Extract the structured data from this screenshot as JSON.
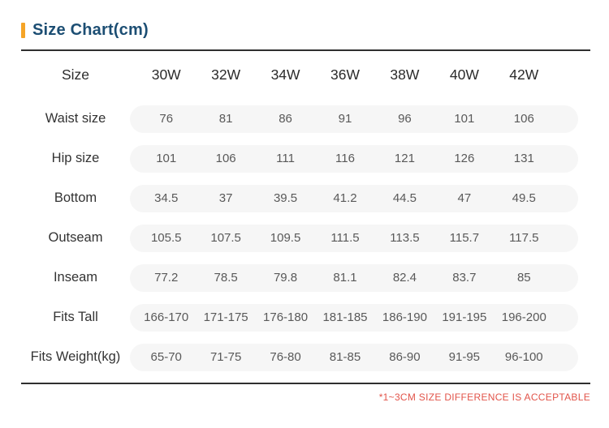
{
  "header": {
    "title": "Size Chart(cm)"
  },
  "table": {
    "header_label": "Size",
    "size_columns": [
      "30W",
      "32W",
      "34W",
      "36W",
      "38W",
      "40W",
      "42W"
    ],
    "rows": [
      {
        "label": "Waist size",
        "values": [
          "76",
          "81",
          "86",
          "91",
          "96",
          "101",
          "106"
        ]
      },
      {
        "label": "Hip size",
        "values": [
          "101",
          "106",
          "111",
          "116",
          "121",
          "126",
          "131"
        ]
      },
      {
        "label": "Bottom",
        "values": [
          "34.5",
          "37",
          "39.5",
          "41.2",
          "44.5",
          "47",
          "49.5"
        ]
      },
      {
        "label": "Outseam",
        "values": [
          "105.5",
          "107.5",
          "109.5",
          "111.5",
          "113.5",
          "115.7",
          "117.5"
        ]
      },
      {
        "label": "Inseam",
        "values": [
          "77.2",
          "78.5",
          "79.8",
          "81.1",
          "82.4",
          "83.7",
          "85"
        ]
      },
      {
        "label": "Fits Tall",
        "values": [
          "166-170",
          "171-175",
          "176-180",
          "181-185",
          "186-190",
          "191-195",
          "196-200"
        ]
      },
      {
        "label": "Fits Weight(kg)",
        "values": [
          "65-70",
          "71-75",
          "76-80",
          "81-85",
          "86-90",
          "91-95",
          "96-100"
        ]
      }
    ]
  },
  "footnote": {
    "text": "*1~3CM SIZE DIFFERENCE IS ACCEPTABLE"
  },
  "colors": {
    "title": "#1C4E73",
    "accent_bar": "#F5A427",
    "rule": "#2F2F2F",
    "row_pill_background": "#F6F6F6",
    "value_text": "#595959",
    "label_text": "#333333",
    "footnote_text": "#E2544A"
  },
  "chart_data": {
    "type": "table",
    "title": "Size Chart(cm)",
    "columns": [
      "Size",
      "30W",
      "32W",
      "34W",
      "36W",
      "38W",
      "40W",
      "42W"
    ],
    "rows": [
      [
        "Waist size",
        76,
        81,
        86,
        91,
        96,
        101,
        106
      ],
      [
        "Hip size",
        101,
        106,
        111,
        116,
        121,
        126,
        131
      ],
      [
        "Bottom",
        34.5,
        37,
        39.5,
        41.2,
        44.5,
        47,
        49.5
      ],
      [
        "Outseam",
        105.5,
        107.5,
        109.5,
        111.5,
        113.5,
        115.7,
        117.5
      ],
      [
        "Inseam",
        77.2,
        78.5,
        79.8,
        81.1,
        82.4,
        83.7,
        85
      ],
      [
        "Fits Tall",
        "166-170",
        "171-175",
        "176-180",
        "181-185",
        "186-190",
        "191-195",
        "196-200"
      ],
      [
        "Fits Weight(kg)",
        "65-70",
        "71-75",
        "76-80",
        "81-85",
        "86-90",
        "91-95",
        "96-100"
      ]
    ],
    "note": "*1~3CM SIZE DIFFERENCE IS ACCEPTABLE",
    "unit": "cm"
  }
}
